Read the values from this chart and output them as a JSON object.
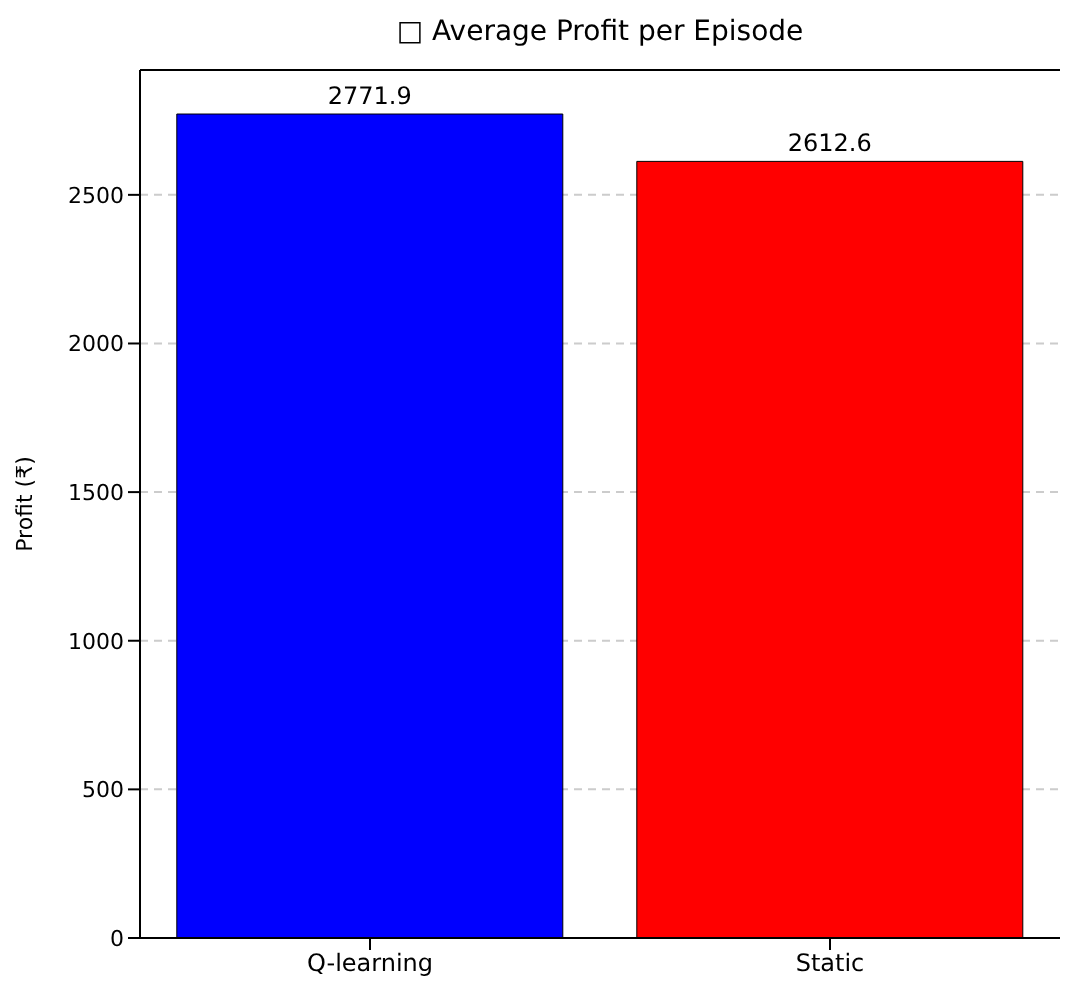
{
  "chart_data": {
    "type": "bar",
    "title": "□ Average Profit per Episode",
    "ylabel": "Profit (₹)",
    "categories": [
      "Q-learning",
      "Static"
    ],
    "values": [
      2771.9,
      2612.6
    ],
    "colors": [
      "#0000ff",
      "#ff0000"
    ],
    "ylim": [
      0,
      2920
    ],
    "yticks": [
      0,
      500,
      1000,
      1500,
      2000,
      2500
    ],
    "grid": "y",
    "data_labels": true
  }
}
